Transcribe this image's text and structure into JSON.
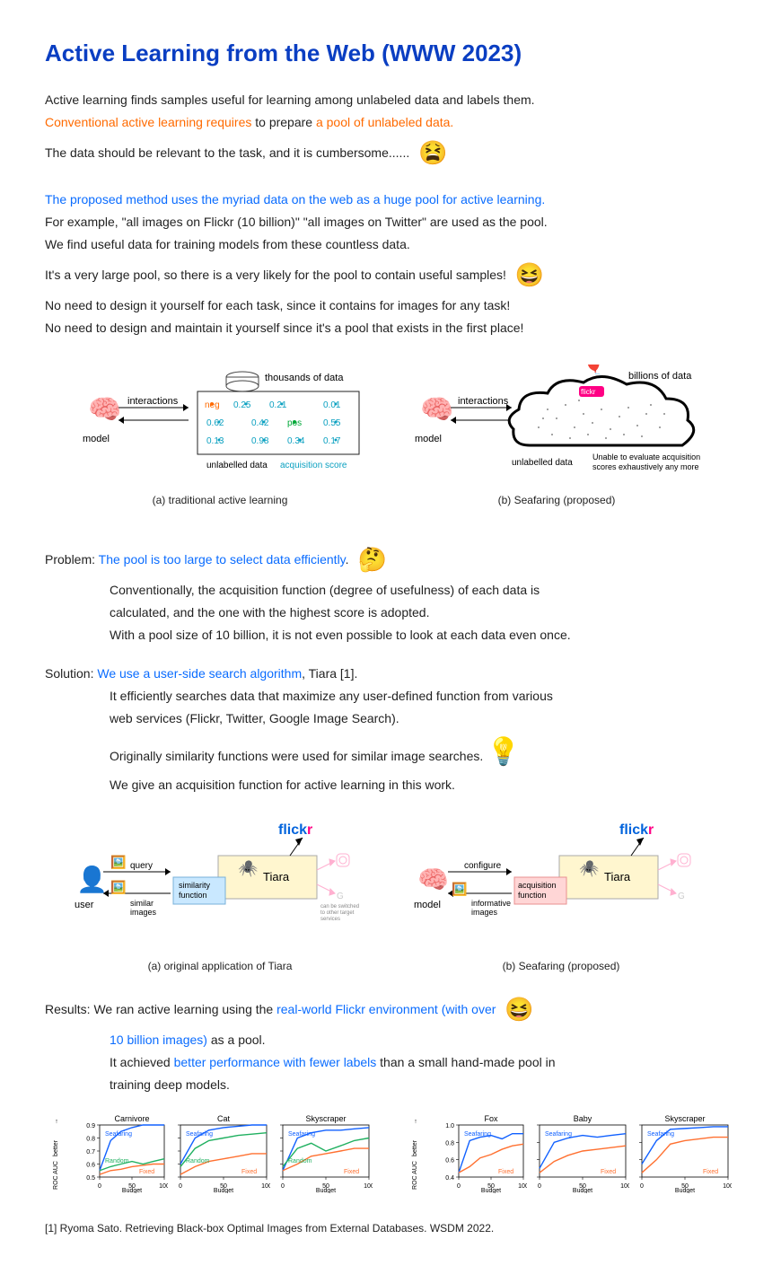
{
  "title": "Active Learning from the Web (WWW 2023)",
  "intro": {
    "line1": "Active learning finds samples useful for learning among unlabeled data and labels them.",
    "line2a": "Conventional active learning requires",
    "line2b": " to prepare ",
    "line2c": "a pool of unlabeled data.",
    "line3": "The data should be relevant to the task, and it is cumbersome......"
  },
  "proposed": {
    "line1": "The proposed method uses the myriad data on the web as a huge pool for active learning.",
    "line2": "For example, \"all images on Flickr (10 billion)\" \"all images on Twitter\" are used as the pool.",
    "line3": "We find useful data for training models from these countless data.",
    "line4": "It's a very large pool, so there is a very likely for the pool to contain useful samples!",
    "line5": "No need to design it yourself for each task, since it contains for images for any task!",
    "line6": "No need to design and maintain it yourself since it's a pool that exists in the first place!"
  },
  "fig1": {
    "left_cap": "(a) traditional active learning",
    "right_cap": "(b) Seafaring (proposed)",
    "thousands": "thousands of data",
    "billions": "billions of data",
    "interactions": "interactions",
    "model": "model",
    "unlabelled": "unlabelled data",
    "acq_score": "acquisition score",
    "unable": "Unable to evaluate acquisition scores exhaustively any more",
    "neg": "neg",
    "pos": "pos",
    "vals": [
      "0.25",
      "0.21",
      "0.01",
      "0.62",
      "0.42",
      "0.55",
      "0.13",
      "0.98",
      "0.34",
      "0.17"
    ],
    "colors": {
      "neg": "#ff6a00",
      "pos": "#00a838",
      "val": "#0aa0c0",
      "border": "#222"
    }
  },
  "problem": {
    "head": "Problem: ",
    "headline": "The pool is too large to select data efficiently",
    "l1": "Conventionally, the acquisition function (degree of usefulness) of each data is",
    "l2": "calculated, and the one with the highest score is adopted.",
    "l3": " With a pool size of 10 billion, it is not even possible to look at each data even once."
  },
  "solution": {
    "head": "Solution: ",
    "headline": "We use a user-side search algorithm",
    "headline_tail": ", Tiara [1].",
    "l1": "It efficiently searches data that maximize any user-defined function from various",
    "l2": "web services (Flickr, Twitter, Google Image Search).",
    "l3": "Originally similarity functions were used for similar image searches.",
    "l4": "We give an acquisition function for active learning in this work."
  },
  "fig2": {
    "left_cap": "(a) original application of Tiara",
    "right_cap": "(b) Seafaring (proposed)",
    "flickr": "flickr",
    "tiara": "Tiara",
    "sim_fn": "similarity function",
    "acq_fn": "acquisition function",
    "configure": "configure",
    "query": "query",
    "similar_images": "similar images",
    "informative_images": "informative images",
    "switch_note": "can be switched to other target services",
    "user": "user",
    "model": "model"
  },
  "results": {
    "head": "Results: ",
    "l1a": "We ran active learning using the ",
    "l1b": "real-world Flickr environment (with over",
    "l2a": "10 billion images)",
    "l2b": " as a pool.",
    "l3a": "It achieved ",
    "l3b": "better performance with fewer labels",
    "l3c": " than a small hand-made pool in",
    "l4": "training deep models."
  },
  "charts": {
    "ylab": "ROC AUC",
    "xlab": "Budget",
    "better": "better",
    "xticks": [
      0,
      50,
      100
    ],
    "left_titles": [
      "Carnivore",
      "Cat",
      "Skyscraper"
    ],
    "right_titles": [
      "Fox",
      "Baby",
      "Skyscraper"
    ],
    "legend": {
      "seafaring": "Seafaring",
      "random": "Random",
      "fixed": "Fixed"
    },
    "colors": {
      "seafaring": "#1060ff",
      "random": "#20b060",
      "fixed": "#ff7030",
      "axis": "#000",
      "grid": "#d8d8d8"
    },
    "left_yticks": [
      0.5,
      0.6,
      0.7,
      0.8,
      0.9
    ],
    "left": [
      {
        "seafaring": [
          0.55,
          0.78,
          0.85,
          0.88,
          0.9,
          0.9,
          0.9
        ],
        "random": [
          0.55,
          0.58,
          0.6,
          0.62,
          0.6,
          0.62,
          0.64
        ],
        "fixed": [
          0.52,
          0.55,
          0.56,
          0.58,
          0.59,
          0.6,
          0.6
        ]
      },
      {
        "seafaring": [
          0.6,
          0.8,
          0.86,
          0.88,
          0.89,
          0.9,
          0.9
        ],
        "random": [
          0.58,
          0.72,
          0.78,
          0.8,
          0.82,
          0.83,
          0.84
        ],
        "fixed": [
          0.52,
          0.58,
          0.62,
          0.64,
          0.66,
          0.68,
          0.68
        ]
      },
      {
        "seafaring": [
          0.55,
          0.8,
          0.84,
          0.86,
          0.86,
          0.87,
          0.88
        ],
        "random": [
          0.58,
          0.72,
          0.76,
          0.7,
          0.74,
          0.78,
          0.8
        ],
        "fixed": [
          0.55,
          0.6,
          0.66,
          0.68,
          0.7,
          0.72,
          0.72
        ]
      }
    ],
    "right_yticks": [
      0.4,
      0.6,
      0.8,
      1.0
    ],
    "right": [
      {
        "seafaring": [
          0.45,
          0.82,
          0.86,
          0.88,
          0.84,
          0.9,
          0.9
        ],
        "fixed": [
          0.45,
          0.52,
          0.62,
          0.66,
          0.72,
          0.76,
          0.78
        ]
      },
      {
        "seafaring": [
          0.5,
          0.8,
          0.85,
          0.88,
          0.86,
          0.88,
          0.9
        ],
        "fixed": [
          0.45,
          0.58,
          0.65,
          0.7,
          0.72,
          0.74,
          0.76
        ]
      },
      {
        "seafaring": [
          0.55,
          0.82,
          0.95,
          0.96,
          0.97,
          0.98,
          0.98
        ],
        "fixed": [
          0.45,
          0.6,
          0.78,
          0.82,
          0.84,
          0.86,
          0.86
        ]
      }
    ]
  },
  "footnote": "[1] Ryoma Sato. Retrieving Black-box Optimal Images from External Databases. WSDM 2022."
}
